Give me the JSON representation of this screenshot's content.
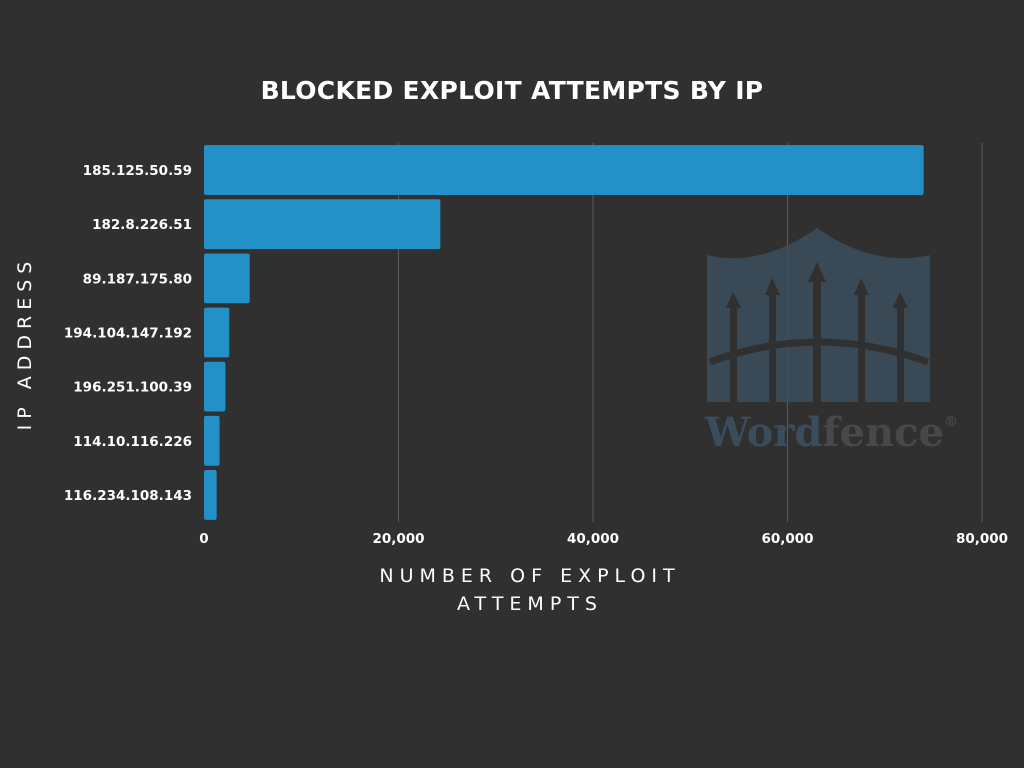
{
  "chart_data": {
    "type": "bar",
    "orientation": "horizontal",
    "title": "BLOCKED EXPLOIT ATTEMPTS BY IP",
    "xlabel": "NUMBER OF EXPLOIT ATTEMPTS",
    "ylabel": "IP ADDRESS",
    "categories": [
      "185.125.50.59",
      "182.8.226.51",
      "89.187.175.80",
      "194.104.147.192",
      "196.251.100.39",
      "114.10.116.226",
      "116.234.108.143"
    ],
    "values": [
      74000,
      24300,
      4700,
      2600,
      2200,
      1600,
      1300
    ],
    "xlim": [
      0,
      80000
    ],
    "xticks": [
      0,
      20000,
      40000,
      60000,
      80000
    ],
    "xtick_labels": [
      "0",
      "20,000",
      "40,000",
      "60,000",
      "80,000"
    ],
    "grid": true,
    "legend": "none"
  },
  "colors": {
    "background": "#303030",
    "bar": "#2390c6",
    "gridline": "#5b5b5b",
    "text": "#ffffff",
    "watermark": "#3b4d5c"
  },
  "watermark": {
    "text_part1": "Word",
    "text_part2": "fence",
    "trademark": "®"
  }
}
